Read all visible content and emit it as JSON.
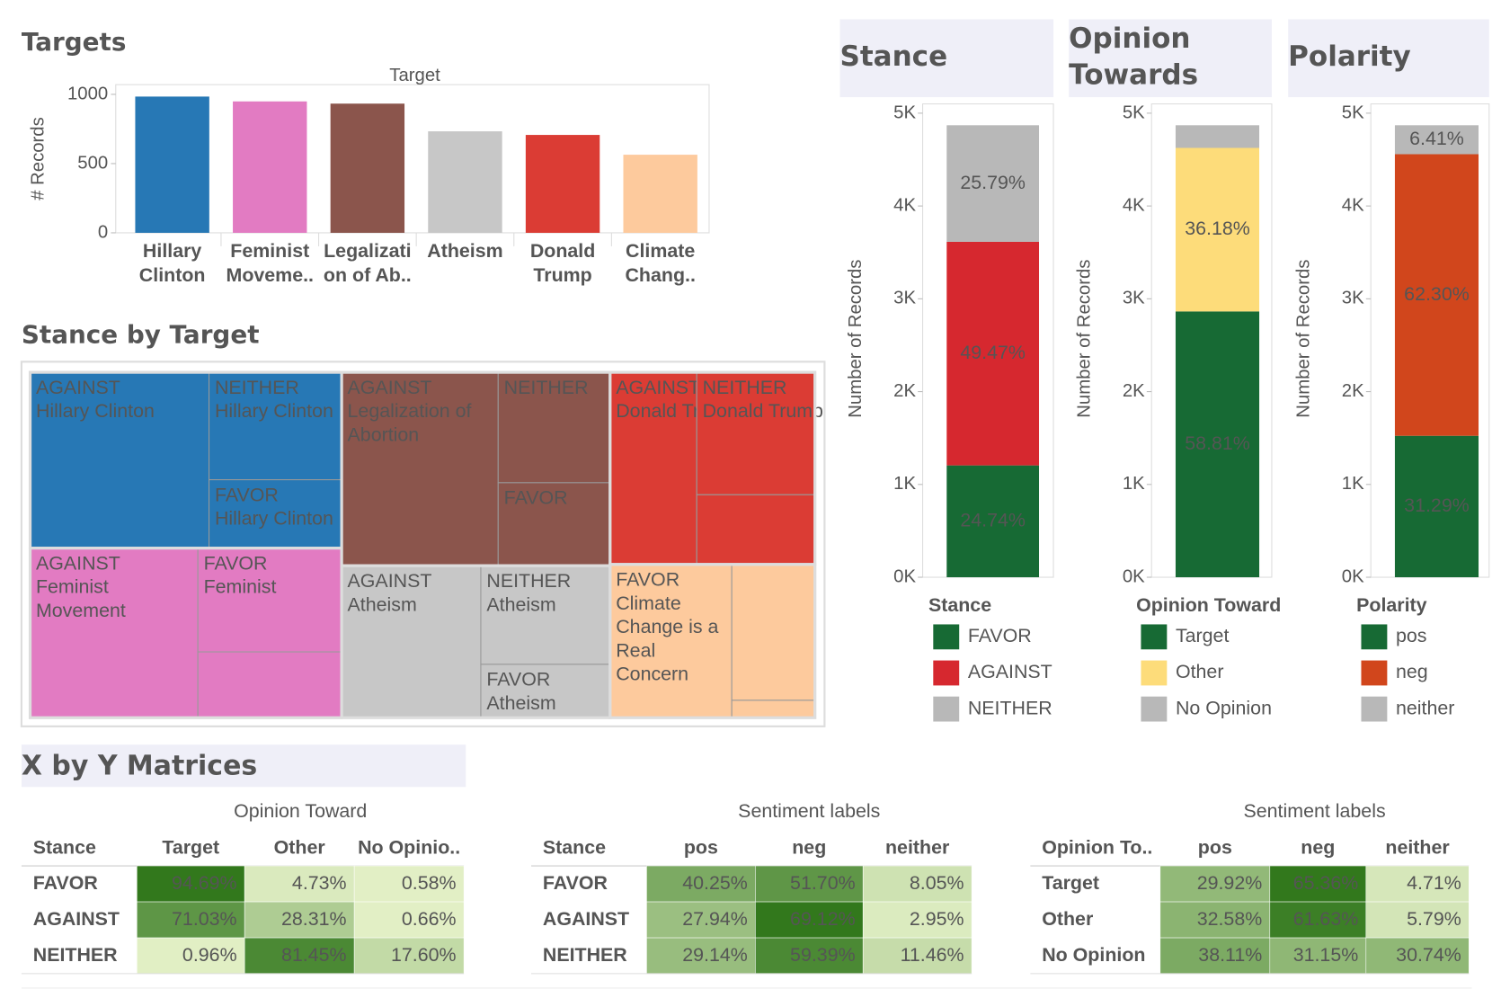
{
  "chart_data": [
    {
      "type": "bar",
      "title": "Targets",
      "x_label": "Target",
      "y_label": "# Records",
      "categories": [
        [
          "Hillary",
          "Clinton"
        ],
        [
          "Feminist",
          "Moveme.."
        ],
        [
          "Legalizati",
          "on of Ab.."
        ],
        [
          "Atheism"
        ],
        [
          "Donald",
          "Trump"
        ],
        [
          "Climate",
          "Chang.."
        ]
      ],
      "values": [
        984,
        949,
        933,
        733,
        707,
        564
      ],
      "colors": [
        "#2778b5",
        "#e27bc2",
        "#8b554c",
        "#c7c7c7",
        "#db3c34",
        "#fdca9d"
      ],
      "ylim": [
        0,
        1070
      ],
      "yticks": [
        0,
        500,
        1000
      ]
    },
    {
      "type": "treemap",
      "title": "Stance by Target",
      "groups": [
        {
          "color": "#2778b5",
          "items": [
            {
              "value": 565,
              "label": [
                "AGAINST",
                "Hillary Clinton"
              ]
            },
            {
              "value": 256,
              "label": [
                "NEITHER",
                "Hillary Clinton"
              ]
            },
            {
              "value": 163,
              "label": [
                "FAVOR",
                "Hillary Clinton"
              ]
            }
          ]
        },
        {
          "color": "#e27bc2",
          "items": [
            {
              "value": 511,
              "label": [
                "AGAINST",
                "Feminist",
                "Movement"
              ]
            },
            {
              "value": 268,
              "label": [
                "FAVOR",
                "Feminist"
              ]
            },
            {
              "value": 170
            }
          ]
        },
        {
          "color": "#8b554c",
          "items": [
            {
              "value": 544,
              "label": [
                "AGAINST",
                "Legalization of",
                "Abortion"
              ]
            },
            {
              "value": 222,
              "label": [
                "NEITHER"
              ]
            },
            {
              "value": 167,
              "label": [
                "FAVOR"
              ]
            }
          ]
        },
        {
          "color": "#c7c7c7",
          "items": [
            {
              "value": 380,
              "label": [
                "AGAINST",
                "Atheism"
              ]
            },
            {
              "value": 229,
              "label": [
                "NEITHER",
                "Atheism"
              ]
            },
            {
              "value": 124,
              "label": [
                "FAVOR",
                "Atheism"
              ]
            }
          ]
        },
        {
          "color": "#db3c34",
          "items": [
            {
              "value": 299,
              "label": [
                "AGAINST",
                "Donald Trump"
              ]
            },
            {
              "value": 260,
              "label": [
                "NEITHER",
                "Donald Trump"
              ]
            },
            {
              "value": 148
            }
          ]
        },
        {
          "color": "#fdca9d",
          "items": [
            {
              "value": 335,
              "label": [
                "FAVOR",
                "Climate",
                "Change is a",
                "Real",
                "Concern"
              ]
            },
            {
              "value": 203
            },
            {
              "value": 26
            }
          ]
        }
      ]
    },
    {
      "type": "stacked-bar",
      "title": [
        "Stance"
      ],
      "y_label": "Number of Records",
      "legend_title": "Stance",
      "ylim": [
        0,
        5100
      ],
      "yticks": [
        {
          "value": 0,
          "label": "0K"
        },
        {
          "value": 1000,
          "label": "1K"
        },
        {
          "value": 2000,
          "label": "2K"
        },
        {
          "value": 3000,
          "label": "3K"
        },
        {
          "value": 4000,
          "label": "4K"
        },
        {
          "value": 5000,
          "label": "5K"
        }
      ],
      "series": [
        {
          "name": "FAVOR",
          "color": "#176a34",
          "value": 1205,
          "label": "24.74%"
        },
        {
          "name": "AGAINST",
          "color": "#d6282f",
          "value": 2409,
          "label": "49.47%"
        },
        {
          "name": "NEITHER",
          "color": "#b8b8b8",
          "value": 1256,
          "label": "25.79%"
        }
      ]
    },
    {
      "type": "stacked-bar",
      "title": [
        "Opinion",
        "Towards"
      ],
      "y_label": "Number of Records",
      "legend_title": "Opinion Toward",
      "ylim": [
        0,
        5100
      ],
      "yticks": [
        {
          "value": 0,
          "label": "0K"
        },
        {
          "value": 1000,
          "label": "1K"
        },
        {
          "value": 2000,
          "label": "2K"
        },
        {
          "value": 3000,
          "label": "3K"
        },
        {
          "value": 4000,
          "label": "4K"
        },
        {
          "value": 5000,
          "label": "5K"
        }
      ],
      "series": [
        {
          "name": "Target",
          "color": "#176a34",
          "value": 2864,
          "label": "58.81%"
        },
        {
          "name": "Other",
          "color": "#fddc7a",
          "value": 1762,
          "label": "36.18%"
        },
        {
          "name": "No Opinion",
          "color": "#b8b8b8",
          "value": 244
        }
      ]
    },
    {
      "type": "stacked-bar",
      "title": [
        "Polarity"
      ],
      "y_label": "Number of Records",
      "legend_title": "Polarity",
      "ylim": [
        0,
        5100
      ],
      "yticks": [
        {
          "value": 0,
          "label": "0K"
        },
        {
          "value": 1000,
          "label": "1K"
        },
        {
          "value": 2000,
          "label": "2K"
        },
        {
          "value": 3000,
          "label": "3K"
        },
        {
          "value": 4000,
          "label": "4K"
        },
        {
          "value": 5000,
          "label": "5K"
        }
      ],
      "series": [
        {
          "name": "pos",
          "color": "#176a34",
          "value": 1524,
          "label": "31.29%"
        },
        {
          "name": "neg",
          "color": "#d1461c",
          "value": 3034,
          "label": "62.30%"
        },
        {
          "name": "neither",
          "color": "#b8b8b8",
          "value": 312,
          "label": "6.41%"
        }
      ]
    }
  ],
  "matrices": {
    "title": "X by Y Matrices",
    "tables": [
      {
        "title": "Opinion Toward",
        "corner": "Stance",
        "columns": [
          "Target",
          "Other",
          "No Opinio.."
        ],
        "rows": [
          {
            "label": "FAVOR",
            "cells": [
              {
                "value": 94.69,
                "label": "94.69%"
              },
              {
                "value": 4.73,
                "label": "4.73%"
              },
              {
                "value": 0.58,
                "label": "0.58%"
              }
            ]
          },
          {
            "label": "AGAINST",
            "cells": [
              {
                "value": 71.03,
                "label": "71.03%"
              },
              {
                "value": 28.31,
                "label": "28.31%"
              },
              {
                "value": 0.66,
                "label": "0.66%"
              }
            ]
          },
          {
            "label": "NEITHER",
            "cells": [
              {
                "value": 0.96,
                "label": "0.96%"
              },
              {
                "value": 81.45,
                "label": "81.45%"
              },
              {
                "value": 17.6,
                "label": "17.60%"
              }
            ]
          }
        ]
      },
      {
        "title": "Sentiment labels",
        "corner": "Stance",
        "columns": [
          "pos",
          "neg",
          "neither"
        ],
        "rows": [
          {
            "label": "FAVOR",
            "cells": [
              {
                "value": 40.25,
                "label": "40.25%"
              },
              {
                "value": 51.7,
                "label": "51.70%"
              },
              {
                "value": 8.05,
                "label": "8.05%"
              }
            ]
          },
          {
            "label": "AGAINST",
            "cells": [
              {
                "value": 27.94,
                "label": "27.94%"
              },
              {
                "value": 69.12,
                "label": "69.12%"
              },
              {
                "value": 2.95,
                "label": "2.95%"
              }
            ]
          },
          {
            "label": "NEITHER",
            "cells": [
              {
                "value": 29.14,
                "label": "29.14%"
              },
              {
                "value": 59.39,
                "label": "59.39%"
              },
              {
                "value": 11.46,
                "label": "11.46%"
              }
            ]
          }
        ]
      },
      {
        "title": "Sentiment labels",
        "corner": "Opinion To..",
        "columns": [
          "pos",
          "neg",
          "neither"
        ],
        "rows": [
          {
            "label": "Target",
            "cells": [
              {
                "value": 29.92,
                "label": "29.92%"
              },
              {
                "value": 65.36,
                "label": "65.36%"
              },
              {
                "value": 4.71,
                "label": "4.71%"
              }
            ]
          },
          {
            "label": "Other",
            "cells": [
              {
                "value": 32.58,
                "label": "32.58%"
              },
              {
                "value": 61.63,
                "label": "61.63%"
              },
              {
                "value": 5.79,
                "label": "5.79%"
              }
            ]
          },
          {
            "label": "No Opinion",
            "cells": [
              {
                "value": 38.11,
                "label": "38.11%"
              },
              {
                "value": 31.15,
                "label": "31.15%"
              },
              {
                "value": 30.74,
                "label": "30.74%"
              }
            ]
          }
        ]
      }
    ]
  }
}
